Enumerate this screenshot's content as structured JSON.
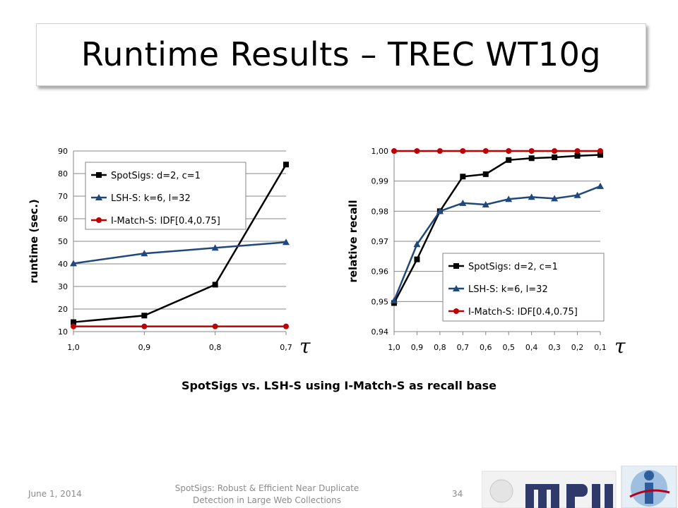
{
  "slide": {
    "title": "Runtime Results – TREC WT10g",
    "caption": "SpotSigs vs. LSH-S using I-Match-S as recall base",
    "tau_symbol": "τ",
    "footer": {
      "date": "June 1, 2014",
      "title": "SpotSigs: Robust & Efficient Near Duplicate Detection in Large Web Collections",
      "page": "34"
    },
    "logos": [
      "mpii-logo",
      "stanford-infolab-logo"
    ]
  },
  "chart_data": [
    {
      "type": "line",
      "xlabel": "",
      "ylabel": "runtime (sec.)",
      "categories": [
        "1,0",
        "0,9",
        "0,8",
        "0,7"
      ],
      "ylim": [
        10,
        90
      ],
      "yticks": [
        "10",
        "20",
        "30",
        "40",
        "50",
        "60",
        "70",
        "80",
        "90"
      ],
      "grid": true,
      "legend": "upper-left",
      "series": [
        {
          "name": "SpotSigs: d=2, c=1",
          "color": "#000000",
          "marker": "square",
          "values": [
            14.2,
            17.1,
            30.8,
            84
          ]
        },
        {
          "name": "LSH-S: k=6, l=32",
          "color": "#1f497d",
          "marker": "triangle",
          "values": [
            40.2,
            44.6,
            47.1,
            49.6
          ]
        },
        {
          "name": "I-Match-S: IDF[0.4,0.75]",
          "color": "#c00000",
          "marker": "circle",
          "values": [
            12.3,
            12.3,
            12.3,
            12.3
          ]
        }
      ]
    },
    {
      "type": "line",
      "xlabel": "",
      "ylabel": "relative recall",
      "categories": [
        "1,0",
        "0,9",
        "0,8",
        "0,7",
        "0,6",
        "0,5",
        "0,4",
        "0,3",
        "0,2",
        "0,1"
      ],
      "ylim": [
        0.94,
        1.0
      ],
      "yticks": [
        "0,94",
        "0,95",
        "0,96",
        "0,97",
        "0,98",
        "0,99",
        "1,00"
      ],
      "grid": true,
      "legend": "lower-right",
      "series": [
        {
          "name": "SpotSigs: d=2, c=1",
          "color": "#000000",
          "marker": "square",
          "values": [
            0.9495,
            0.964,
            0.98,
            0.9915,
            0.9923,
            0.997,
            0.9976,
            0.9979,
            0.9984,
            0.9987
          ]
        },
        {
          "name": "LSH-S: k=6, l=32",
          "color": "#1f497d",
          "marker": "triangle",
          "values": [
            0.9503,
            0.969,
            0.98,
            0.9827,
            0.9822,
            0.984,
            0.9847,
            0.9842,
            0.9853,
            0.9883
          ]
        },
        {
          "name": "I-Match-S: IDF[0.4,0.75]",
          "color": "#c00000",
          "marker": "circle",
          "values": [
            1.0,
            1.0,
            1.0,
            1.0,
            1.0,
            1.0,
            1.0,
            1.0,
            1.0,
            1.0
          ]
        }
      ]
    }
  ]
}
